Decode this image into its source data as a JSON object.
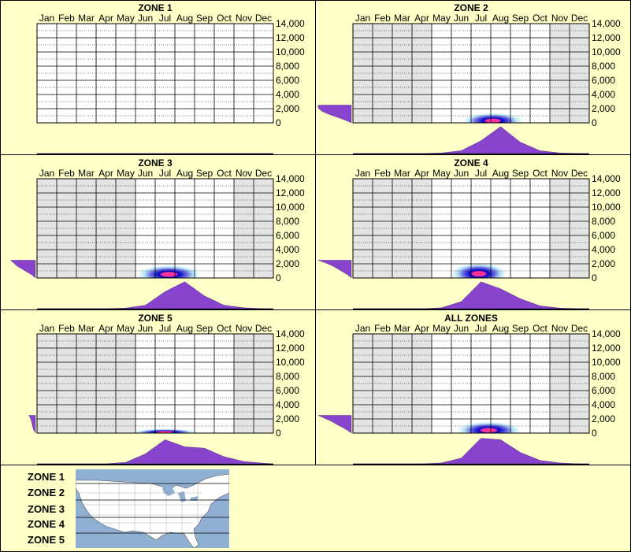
{
  "months": [
    "Jan",
    "Feb",
    "Mar",
    "Apr",
    "May",
    "Jun",
    "Jul",
    "Aug",
    "Sep",
    "Oct",
    "Nov",
    "Dec"
  ],
  "colors": {
    "background": "#ffffc8",
    "density_fill": "#8844cc",
    "active_cell": "#ffffff",
    "inactive_cell": "#e4e4e4",
    "heat_core": "#ff3399",
    "heat_mid": "#0000cc",
    "heat_outer": "#66ccee"
  },
  "chart_data": [
    {
      "type": "heatmap",
      "title": "ZONE 1",
      "y_ticks": [
        "14,000",
        "12,000",
        "10,000",
        "8,000",
        "6,000",
        "4,000",
        "2,000",
        "0"
      ],
      "ylim": [
        0,
        14000
      ],
      "active_months": [
        "Jan",
        "Feb",
        "Mar",
        "Apr",
        "May",
        "Jun",
        "Jul",
        "Aug",
        "Sep",
        "Oct",
        "Nov",
        "Dec"
      ],
      "monthly_density": [
        0,
        0,
        0,
        0,
        0,
        0,
        0,
        0,
        0,
        0,
        0,
        0
      ],
      "elevation_density": [],
      "hotspot": null
    },
    {
      "type": "heatmap",
      "title": "ZONE 2",
      "y_ticks": [
        "14,000",
        "12,000",
        "10,000",
        "8,000",
        "6,000",
        "4,000",
        "2,000",
        "0"
      ],
      "ylim": [
        0,
        14000
      ],
      "active_months": [
        "May",
        "Jun",
        "Jul",
        "Aug",
        "Sep",
        "Oct"
      ],
      "monthly_density": [
        0,
        0,
        0,
        0,
        0.02,
        0.1,
        0.45,
        0.95,
        0.4,
        0.1,
        0.02,
        0
      ],
      "elevation_density": [
        0,
        0.2,
        0.45,
        0.7,
        0.9,
        1.0,
        1.0
      ],
      "hotspot": {
        "month": 7.6,
        "elevation": 300,
        "month_spread": 1.5,
        "elevation_spread": 1100
      }
    },
    {
      "type": "heatmap",
      "title": "ZONE 3",
      "y_ticks": [
        "14,000",
        "12,000",
        "10,000",
        "8,000",
        "6,000",
        "4,000",
        "2,000",
        "0"
      ],
      "ylim": [
        0,
        14000
      ],
      "active_months": [
        "Jun",
        "Jul",
        "Aug",
        "Sep",
        "Oct"
      ],
      "monthly_density": [
        0,
        0,
        0,
        0,
        0.02,
        0.12,
        0.6,
        0.95,
        0.45,
        0.12,
        0.03,
        0
      ],
      "elevation_density": [
        0,
        0.1,
        0.25,
        0.4,
        0.55,
        0.65,
        0.75
      ],
      "hotspot": {
        "month": 7.2,
        "elevation": 500,
        "month_spread": 1.6,
        "elevation_spread": 1300
      }
    },
    {
      "type": "heatmap",
      "title": "ZONE 4",
      "y_ticks": [
        "14,000",
        "12,000",
        "10,000",
        "8,000",
        "6,000",
        "4,000",
        "2,000",
        "0"
      ],
      "ylim": [
        0,
        14000
      ],
      "active_months": [
        "May",
        "Jun",
        "Jul",
        "Aug",
        "Sep",
        "Oct"
      ],
      "monthly_density": [
        0,
        0,
        0,
        0,
        0.03,
        0.25,
        0.95,
        0.7,
        0.35,
        0.1,
        0.02,
        0
      ],
      "elevation_density": [
        0,
        0.1,
        0.25,
        0.4,
        0.55,
        0.75,
        1.0
      ],
      "hotspot": {
        "month": 6.9,
        "elevation": 600,
        "month_spread": 1.4,
        "elevation_spread": 1500
      }
    },
    {
      "type": "heatmap",
      "title": "ZONE 5",
      "y_ticks": [
        "14,000",
        "12,000",
        "10,000",
        "8,000",
        "6,000",
        "4,000",
        "2,000",
        "0"
      ],
      "ylim": [
        0,
        14000
      ],
      "active_months": [
        "Jun",
        "Jul",
        "Aug",
        "Sep",
        "Oct"
      ],
      "monthly_density": [
        0,
        0,
        0,
        0,
        0.05,
        0.35,
        0.85,
        0.6,
        0.55,
        0.25,
        0.08,
        0.02
      ],
      "elevation_density": [
        0,
        0.05,
        0.08,
        0.1,
        0.12,
        0.15,
        0.2
      ],
      "hotspot": {
        "month": 7.0,
        "elevation": 150,
        "month_spread": 1.6,
        "elevation_spread": 450
      }
    },
    {
      "type": "heatmap",
      "title": "ALL ZONES",
      "y_ticks": [
        "14,000",
        "12,000",
        "10,000",
        "8,000",
        "6,000",
        "4,000",
        "2,000",
        "0"
      ],
      "ylim": [
        0,
        14000
      ],
      "active_months": [
        "May",
        "Jun",
        "Jul",
        "Aug",
        "Sep",
        "Oct"
      ],
      "monthly_density": [
        0,
        0,
        0,
        0,
        0.03,
        0.2,
        0.9,
        0.85,
        0.4,
        0.12,
        0.03,
        0
      ],
      "elevation_density": [
        0,
        0.12,
        0.28,
        0.45,
        0.6,
        0.8,
        1.0
      ],
      "hotspot": {
        "month": 7.4,
        "elevation": 400,
        "month_spread": 1.6,
        "elevation_spread": 1200
      }
    }
  ],
  "legend": {
    "zones": [
      "ZONE 1",
      "ZONE 2",
      "ZONE 3",
      "ZONE 4",
      "ZONE 5"
    ]
  }
}
